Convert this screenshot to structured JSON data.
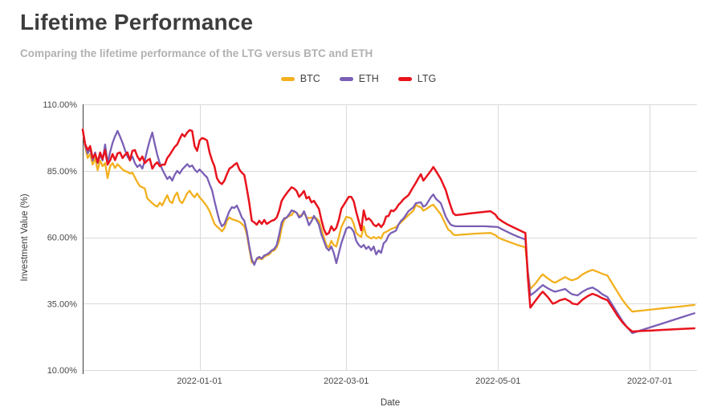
{
  "page": {
    "background": "#ffffff"
  },
  "header": {
    "title": "Lifetime Performance",
    "subtitle": "Comparing the lifetime performance of the LTG versus BTC and ETH"
  },
  "legend": {
    "items": [
      {
        "label": "BTC",
        "color": "#f2b01e"
      },
      {
        "label": "ETH",
        "color": "#7a5fb5"
      },
      {
        "label": "LTG",
        "color": "#e8131d"
      }
    ]
  },
  "axes": {
    "y": {
      "title": "Investment Value (%)",
      "ticks": [
        {
          "value": 110,
          "label": "110.00%"
        },
        {
          "value": 85,
          "label": "85.00%"
        },
        {
          "value": 60,
          "label": "60.00%"
        },
        {
          "value": 35,
          "label": "35.00%"
        },
        {
          "value": 10,
          "label": "10.00%"
        }
      ]
    },
    "x": {
      "title": "Date",
      "ticks": [
        {
          "date": "2022-01-01",
          "label": "2022-01-01"
        },
        {
          "date": "2022-03-01",
          "label": "2022-03-01"
        },
        {
          "date": "2022-05-01",
          "label": "2022-05-01"
        },
        {
          "date": "2022-07-01",
          "label": "2022-07-01"
        }
      ]
    }
  },
  "chart_data": {
    "type": "line",
    "title": "Lifetime Performance",
    "subtitle": "Comparing the lifetime performance of the LTG versus BTC and ETH",
    "xlabel": "Date",
    "ylabel": "Investment Value (%)",
    "ylim": [
      10,
      110
    ],
    "x_range": [
      "2021-11-15",
      "2022-07-20"
    ],
    "grid": true,
    "legend_position": "top-center",
    "colors": {
      "grid": "#dadada",
      "axis": "#3c3c3c",
      "background": "#ffffff"
    },
    "x": [
      "2021-11-15",
      "2021-11-16",
      "2021-11-17",
      "2021-11-18",
      "2021-11-19",
      "2021-11-20",
      "2021-11-21",
      "2021-11-22",
      "2021-11-23",
      "2021-11-24",
      "2021-11-25",
      "2021-11-26",
      "2021-11-27",
      "2021-11-28",
      "2021-11-29",
      "2021-11-30",
      "2021-12-01",
      "2021-12-02",
      "2021-12-03",
      "2021-12-04",
      "2021-12-05",
      "2021-12-06",
      "2021-12-07",
      "2021-12-08",
      "2021-12-09",
      "2021-12-10",
      "2021-12-11",
      "2021-12-12",
      "2021-12-13",
      "2021-12-14",
      "2021-12-15",
      "2021-12-16",
      "2021-12-17",
      "2021-12-18",
      "2021-12-19",
      "2021-12-20",
      "2021-12-21",
      "2021-12-22",
      "2021-12-23",
      "2021-12-24",
      "2021-12-25",
      "2021-12-26",
      "2021-12-27",
      "2021-12-28",
      "2021-12-29",
      "2021-12-30",
      "2021-12-31",
      "2022-01-01",
      "2022-01-02",
      "2022-01-03",
      "2022-01-04",
      "2022-01-05",
      "2022-01-06",
      "2022-01-07",
      "2022-01-08",
      "2022-01-09",
      "2022-01-10",
      "2022-01-11",
      "2022-01-12",
      "2022-01-13",
      "2022-01-14",
      "2022-01-15",
      "2022-01-16",
      "2022-01-17",
      "2022-01-18",
      "2022-01-19",
      "2022-01-20",
      "2022-01-21",
      "2022-01-22",
      "2022-01-23",
      "2022-01-24",
      "2022-01-25",
      "2022-01-26",
      "2022-01-27",
      "2022-01-28",
      "2022-01-29",
      "2022-01-30",
      "2022-01-31",
      "2022-02-01",
      "2022-02-02",
      "2022-02-03",
      "2022-02-04",
      "2022-02-05",
      "2022-02-06",
      "2022-02-07",
      "2022-02-08",
      "2022-02-09",
      "2022-02-10",
      "2022-02-11",
      "2022-02-12",
      "2022-02-13",
      "2022-02-14",
      "2022-02-15",
      "2022-02-16",
      "2022-02-17",
      "2022-02-18",
      "2022-02-19",
      "2022-02-20",
      "2022-02-21",
      "2022-02-22",
      "2022-02-23",
      "2022-02-24",
      "2022-02-25",
      "2022-02-26",
      "2022-02-27",
      "2022-03-01",
      "2022-03-02",
      "2022-03-03",
      "2022-03-04",
      "2022-03-05",
      "2022-03-06",
      "2022-03-07",
      "2022-03-08",
      "2022-03-09",
      "2022-03-10",
      "2022-03-11",
      "2022-03-12",
      "2022-03-13",
      "2022-03-14",
      "2022-03-15",
      "2022-03-16",
      "2022-03-17",
      "2022-03-18",
      "2022-03-19",
      "2022-03-20",
      "2022-03-21",
      "2022-03-22",
      "2022-03-23",
      "2022-03-24",
      "2022-03-26",
      "2022-03-28",
      "2022-03-29",
      "2022-03-30",
      "2022-03-31",
      "2022-04-01",
      "2022-04-02",
      "2022-04-04",
      "2022-04-05",
      "2022-04-06",
      "2022-04-08",
      "2022-04-10",
      "2022-04-11",
      "2022-04-12",
      "2022-04-13",
      "2022-04-14",
      "2022-04-17",
      "2022-04-20",
      "2022-04-23",
      "2022-04-26",
      "2022-04-28",
      "2022-04-30",
      "2022-05-01",
      "2022-05-03",
      "2022-05-05",
      "2022-05-07",
      "2022-05-09",
      "2022-05-11",
      "2022-05-12",
      "2022-05-13",
      "2022-05-14",
      "2022-05-16",
      "2022-05-18",
      "2022-05-19",
      "2022-05-21",
      "2022-05-23",
      "2022-05-24",
      "2022-05-26",
      "2022-05-28",
      "2022-05-30",
      "2022-05-31",
      "2022-06-02",
      "2022-06-04",
      "2022-06-06",
      "2022-06-08",
      "2022-06-10",
      "2022-06-12",
      "2022-06-14",
      "2022-06-16",
      "2022-06-18",
      "2022-06-20",
      "2022-06-22",
      "2022-06-24",
      "2022-06-28",
      "2022-07-02",
      "2022-07-06",
      "2022-07-10",
      "2022-07-14",
      "2022-07-19"
    ],
    "series": [
      {
        "name": "BTC",
        "color": "#f2b01e",
        "values": [
          100.5,
          94,
          89.8,
          91.3,
          87.3,
          89.8,
          85.2,
          88.9,
          86.7,
          87.9,
          82.2,
          86.7,
          87.9,
          86,
          87.5,
          86.5,
          85.5,
          84.9,
          84.6,
          84,
          84.3,
          82.5,
          80.7,
          79.2,
          78.8,
          78.3,
          74.6,
          73.7,
          72.8,
          72,
          71.5,
          73,
          72,
          74,
          75.8,
          73.5,
          72.8,
          75.5,
          76.8,
          73.7,
          72.8,
          74.5,
          76.5,
          77.5,
          76,
          75,
          76.5,
          75,
          74,
          72.8,
          71.5,
          69.8,
          67.4,
          65,
          64,
          63.2,
          62.2,
          63.4,
          66.2,
          67.4,
          66.8,
          66.5,
          66.2,
          65.8,
          65,
          64.1,
          61,
          55.6,
          50.5,
          50.2,
          51.7,
          52,
          51.7,
          52.6,
          53.1,
          53.5,
          54.7,
          55,
          56.2,
          58.6,
          63.4,
          66.5,
          67.4,
          68,
          68.3,
          69.8,
          69.2,
          68,
          68.3,
          69.2,
          67.4,
          67.2,
          67.4,
          67.2,
          67.1,
          66.2,
          63,
          60,
          57,
          56.2,
          58.6,
          57,
          56.5,
          60,
          63.8,
          67.7,
          67.4,
          67.1,
          65,
          61.6,
          60.7,
          60.1,
          64.1,
          60.7,
          60.1,
          59.5,
          60.1,
          59.5,
          60.1,
          59.5,
          61.6,
          62,
          62.5,
          63.1,
          63.4,
          63.8,
          64.7,
          65.6,
          66.5,
          68.3,
          70,
          72.2,
          71.6,
          71.3,
          70,
          70.5,
          71.8,
          72.2,
          71,
          68.6,
          64.7,
          62.8,
          62.2,
          61,
          60.8,
          61,
          61.2,
          61.4,
          61.5,
          61.6,
          60.8,
          59.9,
          59.1,
          58.4,
          57.7,
          57,
          56.5,
          56.2,
          47,
          40.5,
          42.5,
          45,
          46,
          44.5,
          43.2,
          42.9,
          44,
          45,
          44,
          43.8,
          44.5,
          46,
          47,
          47.7,
          47,
          46.2,
          45.6,
          42.5,
          39.5,
          36.5,
          34,
          32,
          32.4,
          32.8,
          33.2,
          33.6,
          34,
          34.5
        ]
      },
      {
        "name": "ETH",
        "color": "#7a5fb5",
        "values": [
          100.5,
          94.5,
          91.5,
          93.4,
          88.9,
          91.9,
          87.9,
          91,
          88.9,
          94.9,
          88,
          92,
          95.5,
          98,
          100,
          97.9,
          95.5,
          92.8,
          90.4,
          88.9,
          90.4,
          87.9,
          86.4,
          87.3,
          85.8,
          89,
          93,
          96.5,
          99.4,
          95,
          91,
          87.9,
          85.5,
          83.7,
          81.9,
          82.8,
          81.3,
          83.5,
          85,
          84,
          85.5,
          86.5,
          87.5,
          86.5,
          87,
          85.5,
          84.5,
          85.5,
          84.5,
          83.4,
          82.5,
          80,
          77.7,
          73.7,
          69.8,
          66.2,
          64.1,
          65,
          67.4,
          69.8,
          71.3,
          71,
          71.9,
          69.8,
          67.4,
          66.2,
          62.2,
          56.5,
          51.7,
          49.6,
          52,
          52.6,
          52,
          53.1,
          53.5,
          54.1,
          55,
          55.6,
          57,
          61,
          65.6,
          67.1,
          67.4,
          68.6,
          70.1,
          69.8,
          69.2,
          67.4,
          68,
          69.8,
          67.4,
          64.5,
          66,
          68,
          66.5,
          64.7,
          61,
          58.6,
          56,
          55,
          56.5,
          54,
          50.2,
          54,
          57.7,
          63.2,
          63.8,
          63.4,
          62,
          58.6,
          57.1,
          56.2,
          57.1,
          55.6,
          56.5,
          55,
          56.5,
          53.5,
          55,
          54.1,
          57.7,
          58.6,
          60.7,
          61.6,
          62,
          62.5,
          64.7,
          66.2,
          67,
          69.8,
          71.3,
          72.8,
          73,
          73.1,
          71.5,
          72,
          75,
          76.1,
          74.5,
          72.8,
          67.7,
          66,
          64.7,
          64.3,
          64.1,
          64.1,
          64.1,
          64.1,
          64.1,
          64,
          63.9,
          63.8,
          62.8,
          61.9,
          61,
          60.2,
          59.5,
          59.2,
          47,
          38.1,
          39.5,
          41.2,
          42,
          40.8,
          39.8,
          39.5,
          40,
          40.5,
          39,
          38.5,
          38.1,
          39.5,
          40.5,
          41.1,
          40,
          38.5,
          37.5,
          34.5,
          31.5,
          28.5,
          26,
          23.9,
          25.1,
          26.3,
          27.5,
          28.7,
          29.9,
          31.4
        ]
      },
      {
        "name": "LTG",
        "color": "#e8131d",
        "values": [
          100.5,
          95,
          92.8,
          94.3,
          89.8,
          91.3,
          88.2,
          91.9,
          89.5,
          92.8,
          87.3,
          88.9,
          91.3,
          89,
          91.5,
          91.9,
          89.8,
          91,
          91.9,
          88.9,
          92.5,
          92.8,
          90.4,
          88.9,
          90.4,
          87.9,
          88.9,
          89.5,
          85.8,
          87.3,
          88.2,
          86.7,
          87.3,
          87.3,
          89.8,
          91,
          92.5,
          94,
          94.9,
          97,
          98.8,
          97.9,
          99.4,
          100.3,
          100,
          94.3,
          92.5,
          96.4,
          97.3,
          97,
          96.4,
          91.9,
          88.9,
          86.7,
          82.2,
          80.7,
          80,
          81.3,
          83.7,
          85.8,
          86.4,
          87.3,
          87.9,
          85.5,
          84.3,
          83.4,
          78.3,
          72.8,
          66.2,
          65.6,
          64.7,
          66.2,
          65,
          66.5,
          65,
          65.6,
          66.2,
          66.5,
          67.4,
          70,
          73.7,
          75.2,
          76.5,
          77.7,
          78.8,
          78.3,
          77.4,
          75.2,
          76.2,
          77.4,
          74.6,
          75.2,
          73.1,
          73.7,
          72.2,
          70.7,
          66.5,
          63,
          61,
          61.6,
          64.1,
          62.5,
          63.5,
          66.5,
          70.7,
          73.7,
          75.2,
          75.2,
          73.5,
          69.5,
          66,
          62.6,
          70.1,
          66.5,
          67.1,
          66.2,
          64.7,
          64.1,
          65,
          63.8,
          65,
          67.8,
          68,
          70.1,
          69.8,
          70.7,
          72.2,
          73.1,
          74.3,
          75.8,
          79,
          80.5,
          82.2,
          83.7,
          81.3,
          82.5,
          85,
          86.4,
          85,
          81.9,
          77.7,
          74.5,
          71.6,
          69,
          68.3,
          68.6,
          69,
          69.3,
          69.6,
          69.8,
          68.5,
          67.1,
          65.8,
          64.7,
          63.8,
          62.9,
          62,
          61.6,
          45,
          33.5,
          36,
          38.5,
          39.5,
          37.5,
          35,
          35.3,
          36.3,
          36.8,
          35.8,
          35,
          34.7,
          36.5,
          37.8,
          38.7,
          38,
          37,
          36.3,
          33.5,
          30.5,
          28,
          26,
          24.5,
          24.7,
          24.9,
          25.1,
          25.3,
          25.5,
          25.7
        ]
      }
    ]
  }
}
